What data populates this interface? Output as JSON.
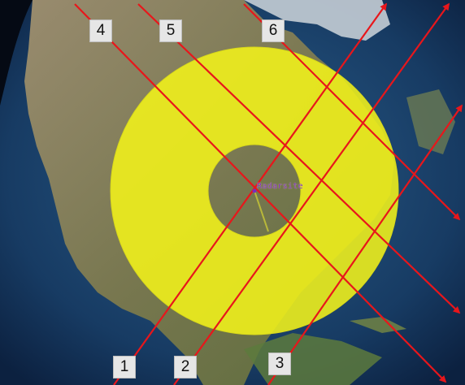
{
  "map": {
    "site_label": "Radarsite",
    "colors": {
      "coverage_ring": "#f2f21a",
      "track_lines": "#e8161b",
      "ocean": "#163a63",
      "land": "#8a7b58"
    },
    "markers": [
      {
        "label": "1"
      },
      {
        "label": "2"
      },
      {
        "label": "3"
      },
      {
        "label": "4"
      },
      {
        "label": "5"
      },
      {
        "label": "6"
      }
    ]
  }
}
